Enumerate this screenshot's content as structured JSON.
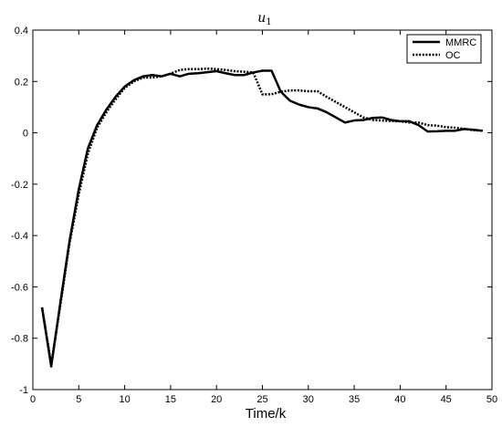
{
  "chart_data": {
    "type": "line",
    "title": "u",
    "title_subscript": "1",
    "xlabel": "Time/k",
    "ylabel": "",
    "xlim": [
      0,
      50
    ],
    "ylim": [
      -1,
      0.4
    ],
    "xticks": [
      0,
      5,
      10,
      15,
      20,
      25,
      30,
      35,
      40,
      45,
      50
    ],
    "yticks": [
      0.4,
      0.2,
      0,
      -0.2,
      -0.4,
      -0.6,
      -0.8,
      -1
    ],
    "grid": false,
    "legend_position": "top-right",
    "series": [
      {
        "name": "MMRC",
        "style": "solid",
        "color": "#000000",
        "x": [
          1,
          2,
          3,
          4,
          5,
          6,
          7,
          8,
          9,
          10,
          11,
          12,
          13,
          14,
          15,
          16,
          17,
          18,
          19,
          20,
          21,
          22,
          23,
          24,
          25,
          26,
          27,
          28,
          29,
          30,
          31,
          32,
          33,
          34,
          35,
          36,
          37,
          38,
          39,
          40,
          41,
          42,
          43,
          44,
          45,
          46,
          47,
          48,
          49
        ],
        "y": [
          -0.68,
          -0.91,
          -0.66,
          -0.42,
          -0.22,
          -0.06,
          0.03,
          0.09,
          0.14,
          0.18,
          0.205,
          0.22,
          0.225,
          0.22,
          0.23,
          0.22,
          0.23,
          0.232,
          0.236,
          0.24,
          0.232,
          0.225,
          0.225,
          0.235,
          0.242,
          0.242,
          0.16,
          0.125,
          0.11,
          0.1,
          0.095,
          0.08,
          0.06,
          0.04,
          0.048,
          0.05,
          0.058,
          0.06,
          0.05,
          0.045,
          0.045,
          0.03,
          0.005,
          0.006,
          0.008,
          0.008,
          0.015,
          0.012,
          0.008
        ]
      },
      {
        "name": "OC",
        "style": "dotted",
        "color": "#000000",
        "x": [
          1,
          2,
          3,
          4,
          5,
          6,
          7,
          8,
          9,
          10,
          11,
          12,
          13,
          14,
          15,
          16,
          17,
          18,
          19,
          20,
          21,
          22,
          23,
          24,
          25,
          26,
          27,
          28,
          29,
          30,
          31,
          32,
          33,
          34,
          35,
          36,
          37,
          38,
          39,
          40,
          41,
          42,
          43,
          44,
          45,
          46,
          47,
          48,
          49
        ],
        "y": [
          -0.68,
          -0.9,
          -0.67,
          -0.43,
          -0.24,
          -0.08,
          0.02,
          0.08,
          0.13,
          0.175,
          0.2,
          0.215,
          0.215,
          0.22,
          0.23,
          0.245,
          0.248,
          0.248,
          0.25,
          0.248,
          0.245,
          0.24,
          0.238,
          0.235,
          0.15,
          0.15,
          0.16,
          0.165,
          0.165,
          0.162,
          0.162,
          0.14,
          0.12,
          0.1,
          0.08,
          0.06,
          0.05,
          0.048,
          0.046,
          0.045,
          0.04,
          0.04,
          0.03,
          0.028,
          0.022,
          0.02,
          0.015,
          0.01,
          0.008
        ]
      }
    ]
  }
}
